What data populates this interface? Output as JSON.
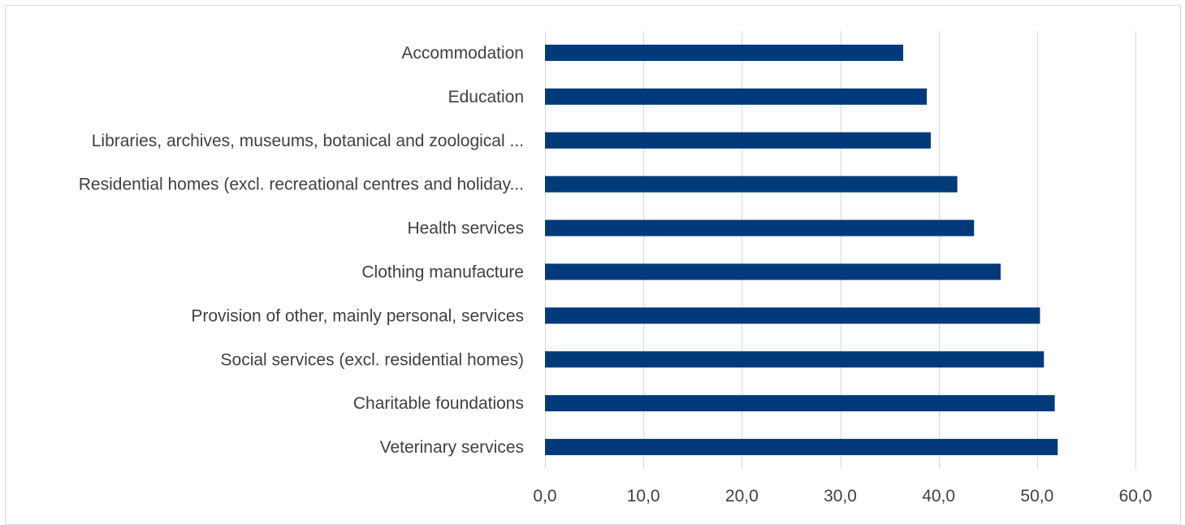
{
  "chart_data": {
    "type": "bar",
    "orientation": "horizontal",
    "title": "",
    "xlabel": "",
    "ylabel": "",
    "categories": [
      "Accommodation",
      "Education",
      "Libraries, archives, museums, botanical and zoological ...",
      "Residential homes (excl. recreational centres and holiday...",
      "Health services",
      "Clothing manufacture",
      "Provision of other, mainly personal, services",
      "Social services (excl. residential homes)",
      "Charitable foundations",
      "Veterinary services"
    ],
    "values": [
      36.4,
      38.8,
      39.2,
      41.9,
      43.6,
      46.3,
      50.3,
      50.7,
      51.8,
      52.1
    ],
    "xlim": [
      0,
      60
    ],
    "xticks": [
      0,
      10,
      20,
      30,
      40,
      50,
      60
    ],
    "xtick_labels": [
      "0,0",
      "10,0",
      "20,0",
      "30,0",
      "40,0",
      "50,0",
      "60,0"
    ],
    "grid": "vertical",
    "legend": "none",
    "bar_color": "#003a7a",
    "grid_color": "#d9d9d9",
    "text_color": "#404040"
  }
}
